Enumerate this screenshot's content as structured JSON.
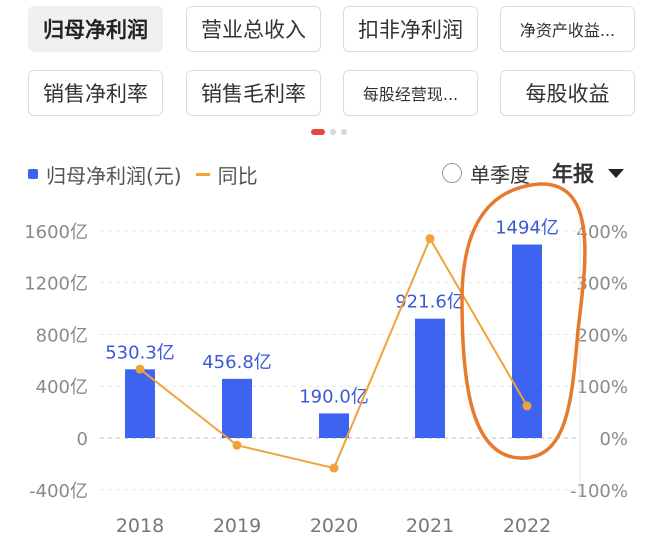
{
  "tabs": {
    "row1": [
      "归母净利润",
      "营业总收入",
      "扣非净利润",
      "净资产收益..."
    ],
    "row2": [
      "销售净利率",
      "销售毛利率",
      "每股经营现...",
      "每股收益"
    ],
    "active_index": 0
  },
  "legend": {
    "bar_series": "归母净利润(元)",
    "line_series": "同比"
  },
  "controls": {
    "quarterly_label": "单季度",
    "period_label": "年报"
  },
  "colors": {
    "bar": "#3d63f0",
    "line": "#f0a33a",
    "active_dot": "#e8453c",
    "annotation": "#e87a2e"
  },
  "chart_data": {
    "type": "bar",
    "categories": [
      "2018",
      "2019",
      "2020",
      "2021",
      "2022"
    ],
    "series": [
      {
        "name": "归母净利润(元)",
        "type": "bar",
        "axis": "left",
        "values": [
          530.3,
          456.8,
          190.0,
          921.6,
          1494
        ],
        "labels": [
          "530.3亿",
          "456.8亿",
          "190.0亿",
          "921.6亿",
          "1494亿"
        ]
      },
      {
        "name": "同比",
        "type": "line",
        "axis": "right",
        "values": [
          133,
          -14,
          -58,
          385,
          62
        ]
      }
    ],
    "y_left": {
      "ticks": [
        "1600亿",
        "1200亿",
        "800亿",
        "400亿",
        "0",
        "-400亿"
      ],
      "values": [
        1600,
        1200,
        800,
        400,
        0,
        -400
      ],
      "range": [
        -400,
        1600
      ]
    },
    "y_right": {
      "ticks": [
        "400%",
        "300%",
        "200%",
        "100%",
        "0%",
        "-100%"
      ],
      "values": [
        400,
        300,
        200,
        100,
        0,
        -100
      ],
      "range": [
        -100,
        400
      ]
    },
    "grid": true,
    "annotation": "hand-drawn orange ellipse circling the 2022 bar"
  }
}
